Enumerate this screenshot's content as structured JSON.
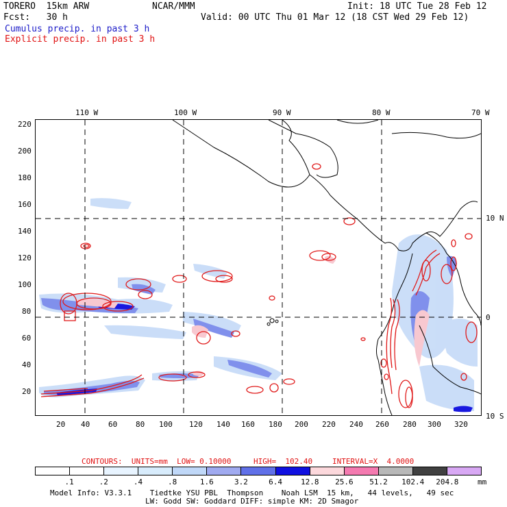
{
  "header": {
    "model_name": "TORERO  15km ARW",
    "org": "NCAR/MMM",
    "init": "Init: 18 UTC Tue 28 Feb 12",
    "fcst": "Fcst:   30 h",
    "valid": "Valid: 00 UTC Thu 01 Mar 12 (18 CST Wed 29 Feb 12)",
    "field1": "Cumulus precip. in past 3 h",
    "field2": "Explicit precip. in past 3 h"
  },
  "axes": {
    "top_lon_labels": [
      "110 W",
      "100 W",
      "90 W",
      "80 W",
      "70 W"
    ],
    "right_lat_labels": [
      "10 N",
      "0",
      "10 S"
    ],
    "left_y_ticks": [
      "220",
      "200",
      "180",
      "160",
      "140",
      "120",
      "100",
      "80",
      "60",
      "40",
      "20"
    ],
    "bottom_x_ticks": [
      "20",
      "40",
      "60",
      "80",
      "100",
      "120",
      "140",
      "160",
      "180",
      "200",
      "220",
      "240",
      "260",
      "280",
      "300",
      "320"
    ]
  },
  "contour_info": {
    "prefix": "CONTOURS:  UNITS=mm  LOW= 0.10000",
    "high": "HIGH=  102.40",
    "interval": "INTERVAL=X  4.0000"
  },
  "colorbar": {
    "labels": [
      ".1",
      ".2",
      ".4",
      ".8",
      "1.6",
      "3.2",
      "6.4",
      "12.8",
      "25.6",
      "51.2",
      "102.4",
      "204.8"
    ],
    "unit": "mm",
    "colors": [
      "#ffffff",
      "#ffffff",
      "#e8f4ff",
      "#d8ecfc",
      "#c0d8f8",
      "#a0aaf0",
      "#6070e8",
      "#1010e0",
      "#fcd8dc",
      "#f47ab0",
      "#b8b8b8",
      "#404040",
      "#d8a8f4"
    ]
  },
  "footer": {
    "line1": "Model Info: V3.3.1    Tiedtke YSU PBL  Thompson    Noah LSM  15 km,   44 levels,   49 sec",
    "line2": "LW: Godd SW: Goddard DIFF: simple KM: 2D Smagor"
  }
}
